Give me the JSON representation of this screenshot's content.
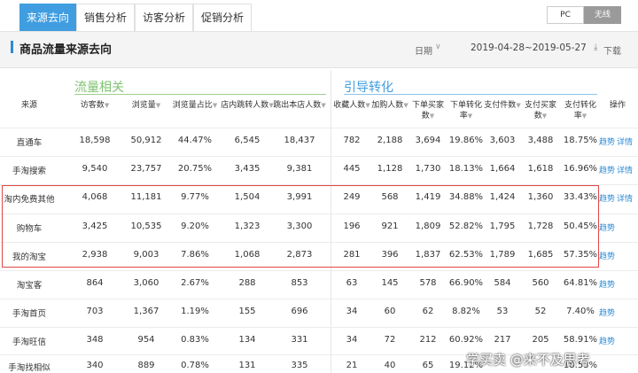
{
  "tabs": [
    {
      "label": "来源去向"
    },
    {
      "label": "销售分析"
    },
    {
      "label": "访客分析"
    },
    {
      "label": "促销分析"
    }
  ],
  "device_toggle": {
    "pc": "PC",
    "wireless": "无线",
    "selected": "无线"
  },
  "section": {
    "title": "商品流量来源去向",
    "date_label": "日期",
    "date_range": "2019-04-28~2019-05-27",
    "download_label": "下载"
  },
  "table": {
    "group_flow": "流量相关",
    "group_conversion": "引导转化",
    "headers": {
      "source": "来源",
      "visitors": "访客数",
      "pageviews": "浏览量",
      "pv_share": "浏览量占比",
      "in_store_jump_a": "店内跳转人数",
      "exit_store_a": "跳出本店人数",
      "favorites_a": "收藏人数",
      "cart_a": "加购人数",
      "buyers_a": "下单买家",
      "buyers_b": "数",
      "order_cvr_a": "下单转化",
      "order_cvr_b": "率",
      "paid_items": "支付件数",
      "paid_buyers_a": "支付买家",
      "paid_buyers_b": "数",
      "pay_cvr_a": "支付转化",
      "pay_cvr_b": "率",
      "action": "操作"
    },
    "rows": [
      {
        "source": "直通车",
        "c1": "18,598",
        "c2": "50,912",
        "c3": "44.47%",
        "c4": "6,545",
        "c5": "18,437",
        "c6": "782",
        "c7": "2,188",
        "c8": "3,694",
        "c9": "19.86%",
        "c10": "3,603",
        "c11": "3,488",
        "c12": "18.75%",
        "op1": "趋势",
        "op2": "详情"
      },
      {
        "source": "手淘搜索",
        "c1": "9,540",
        "c2": "23,757",
        "c3": "20.75%",
        "c4": "3,435",
        "c5": "9,381",
        "c6": "445",
        "c7": "1,128",
        "c8": "1,730",
        "c9": "18.13%",
        "c10": "1,664",
        "c11": "1,618",
        "c12": "16.96%",
        "op1": "趋势",
        "op2": "详情"
      },
      {
        "source": "淘内免费其他",
        "c1": "4,068",
        "c2": "11,181",
        "c3": "9.77%",
        "c4": "1,504",
        "c5": "3,991",
        "c6": "249",
        "c7": "568",
        "c8": "1,419",
        "c9": "34.88%",
        "c10": "1,424",
        "c11": "1,360",
        "c12": "33.43%",
        "op1": "趋势",
        "op2": "详情"
      },
      {
        "source": "购物车",
        "c1": "3,425",
        "c2": "10,535",
        "c3": "9.20%",
        "c4": "1,323",
        "c5": "3,300",
        "c6": "196",
        "c7": "921",
        "c8": "1,809",
        "c9": "52.82%",
        "c10": "1,795",
        "c11": "1,728",
        "c12": "50.45%",
        "op1": "趋势",
        "op2": ""
      },
      {
        "source": "我的淘宝",
        "c1": "2,938",
        "c2": "9,003",
        "c3": "7.86%",
        "c4": "1,068",
        "c5": "2,873",
        "c6": "281",
        "c7": "396",
        "c8": "1,837",
        "c9": "62.53%",
        "c10": "1,789",
        "c11": "1,685",
        "c12": "57.35%",
        "op1": "趋势",
        "op2": ""
      },
      {
        "source": "淘宝客",
        "c1": "864",
        "c2": "3,060",
        "c3": "2.67%",
        "c4": "288",
        "c5": "853",
        "c6": "63",
        "c7": "145",
        "c8": "578",
        "c9": "66.90%",
        "c10": "584",
        "c11": "560",
        "c12": "64.81%",
        "op1": "趋势",
        "op2": ""
      },
      {
        "source": "手淘首页",
        "c1": "703",
        "c2": "1,367",
        "c3": "1.19%",
        "c4": "155",
        "c5": "696",
        "c6": "34",
        "c7": "60",
        "c8": "62",
        "c9": "8.82%",
        "c10": "53",
        "c11": "52",
        "c12": "7.40%",
        "op1": "趋势",
        "op2": ""
      },
      {
        "source": "手淘旺信",
        "c1": "348",
        "c2": "954",
        "c3": "0.83%",
        "c4": "134",
        "c5": "331",
        "c6": "34",
        "c7": "72",
        "c8": "212",
        "c9": "60.92%",
        "c10": "217",
        "c11": "205",
        "c12": "58.91%",
        "op1": "趋势",
        "op2": ""
      },
      {
        "source": "手淘找相似",
        "c1": "340",
        "c2": "889",
        "c3": "0.78%",
        "c4": "131",
        "c5": "335",
        "c6": "21",
        "c7": "40",
        "c8": "65",
        "c9": "19.12%",
        "c10": "",
        "c11": "",
        "c12": "18.53%",
        "op1": "",
        "op2": ""
      }
    ]
  },
  "watermark": "学买卖 @来不及思考",
  "colors": {
    "accent_blue": "#3f9de0",
    "flow_green": "#7ec36f",
    "highlight_red": "#e04848"
  }
}
